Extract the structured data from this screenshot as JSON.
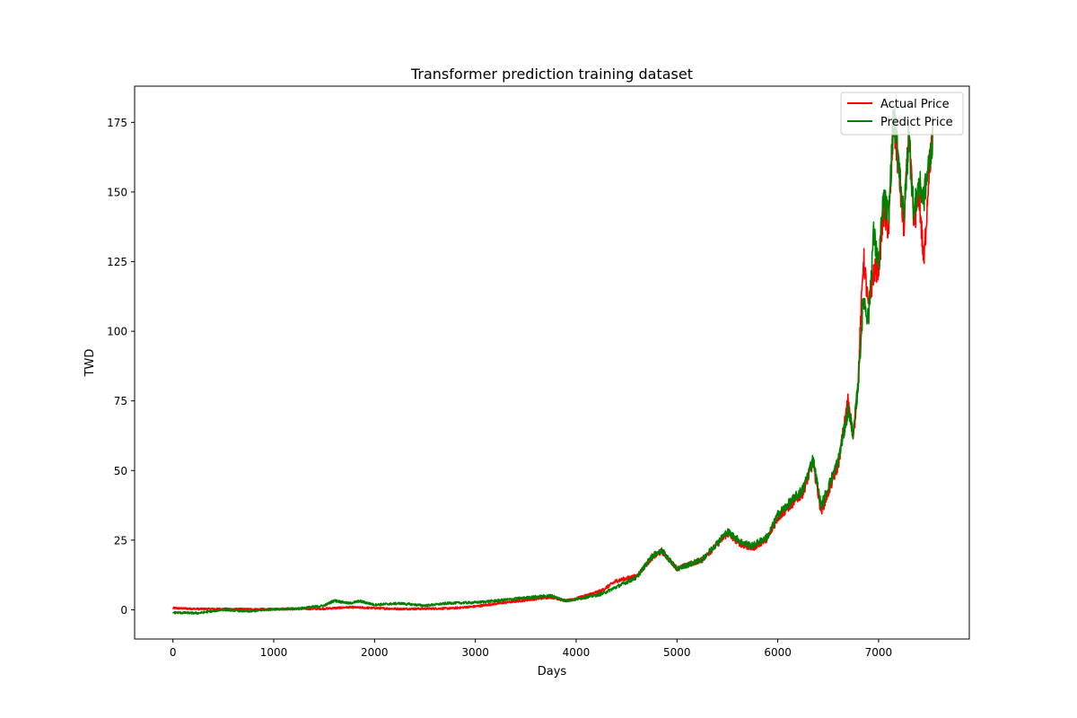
{
  "chart_data": {
    "type": "line",
    "title": "Transformer prediction training dataset",
    "xlabel": "Days",
    "ylabel": "TWD",
    "xlim": [
      -380,
      7900
    ],
    "ylim": [
      -10.5,
      188
    ],
    "xticks": [
      0,
      1000,
      2000,
      3000,
      4000,
      5000,
      6000,
      7000
    ],
    "yticks": [
      0,
      25,
      50,
      75,
      100,
      125,
      150,
      175
    ],
    "grid": false,
    "legend_position": "top-right",
    "legend": [
      "Actual Price",
      "Predict Price"
    ],
    "series": [
      {
        "name": "Actual Price",
        "color": "#ff0000",
        "x": [
          0,
          250,
          500,
          750,
          1000,
          1250,
          1500,
          1750,
          2000,
          2250,
          2500,
          2750,
          3000,
          3250,
          3500,
          3750,
          3900,
          4000,
          4250,
          4400,
          4600,
          4750,
          4850,
          5000,
          5250,
          5500,
          5650,
          5750,
          5900,
          6000,
          6250,
          6350,
          6430,
          6600,
          6700,
          6750,
          6800,
          6850,
          6900,
          6950,
          7000,
          7050,
          7100,
          7150,
          7200,
          7250,
          7300,
          7350,
          7400,
          7450,
          7500,
          7540
        ],
        "y": [
          0.6,
          0.3,
          0.3,
          0.2,
          0.2,
          0.3,
          0.4,
          0.9,
          0.6,
          0.3,
          0.4,
          0.5,
          1.2,
          2.4,
          3.5,
          4.6,
          3.2,
          4.0,
          6.8,
          10.4,
          12.1,
          18.6,
          21.0,
          14.8,
          17.9,
          27.3,
          23.2,
          22.1,
          25.6,
          33.0,
          42.0,
          53.0,
          35.0,
          52.0,
          76.0,
          61.0,
          84.0,
          127.0,
          108.0,
          121.0,
          123.0,
          142.0,
          137.0,
          175.0,
          158.0,
          136.0,
          172.0,
          138.0,
          150.0,
          124.0,
          158.0,
          170.0
        ]
      },
      {
        "name": "Predict Price",
        "color": "#008000",
        "x": [
          0,
          250,
          500,
          750,
          1000,
          1250,
          1500,
          1600,
          1750,
          1850,
          2000,
          2250,
          2500,
          2750,
          3000,
          3250,
          3500,
          3750,
          3900,
          4000,
          4250,
          4400,
          4600,
          4750,
          4850,
          5000,
          5250,
          5500,
          5650,
          5750,
          5900,
          6000,
          6250,
          6350,
          6430,
          6600,
          6700,
          6750,
          6800,
          6850,
          6900,
          6950,
          7000,
          7050,
          7100,
          7150,
          7200,
          7250,
          7300,
          7350,
          7400,
          7450,
          7500,
          7540
        ],
        "y": [
          -1.0,
          -1.2,
          0.0,
          -0.6,
          0.2,
          0.5,
          1.5,
          3.3,
          2.3,
          3.1,
          1.8,
          2.3,
          1.5,
          2.4,
          2.6,
          3.4,
          4.3,
          5.1,
          3.2,
          3.8,
          5.6,
          8.2,
          11.6,
          19.2,
          21.3,
          14.6,
          18.1,
          28.1,
          24.1,
          23.0,
          26.3,
          34.1,
          43.2,
          54.3,
          37.2,
          53.6,
          72.0,
          63.0,
          82.0,
          112.0,
          104.0,
          135.0,
          124.0,
          148.0,
          141.0,
          178.0,
          162.0,
          140.0,
          170.0,
          142.0,
          153.0,
          148.0,
          160.0,
          171.0
        ]
      }
    ]
  }
}
